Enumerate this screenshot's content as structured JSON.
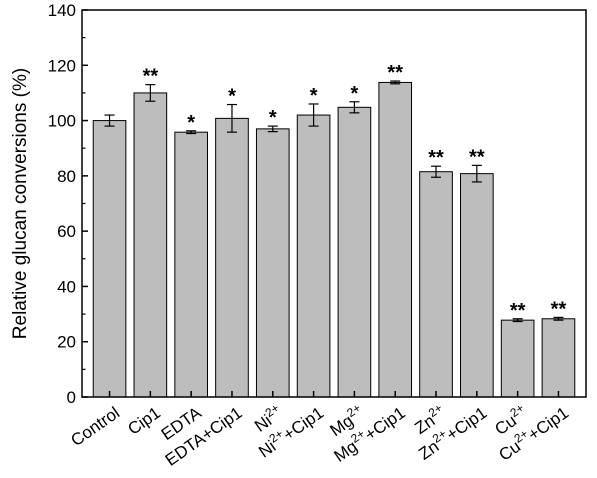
{
  "chart_data": {
    "type": "bar",
    "title": "",
    "xlabel": "",
    "ylabel": "Relative glucan conversions (%)",
    "ylim": [
      0,
      140
    ],
    "yticks": [
      "0",
      "20",
      "40",
      "60",
      "80",
      "100",
      "120",
      "140"
    ],
    "grid": false,
    "bar_color": "#bdbdbd",
    "categories": [
      {
        "base": "Control",
        "sup": "",
        "tail": ""
      },
      {
        "base": "Cip1",
        "sup": "",
        "tail": ""
      },
      {
        "base": "EDTA",
        "sup": "",
        "tail": ""
      },
      {
        "base": "EDTA+Cip1",
        "sup": "",
        "tail": ""
      },
      {
        "base": "Ni",
        "sup": "2+",
        "tail": ""
      },
      {
        "base": "Ni",
        "sup": "2+",
        "tail": "+Cip1"
      },
      {
        "base": "Mg",
        "sup": "2+",
        "tail": ""
      },
      {
        "base": "Mg",
        "sup": "2+",
        "tail": "+Cip1"
      },
      {
        "base": "Zn",
        "sup": "2+",
        "tail": ""
      },
      {
        "base": "Zn",
        "sup": "2+",
        "tail": "+Cip1"
      },
      {
        "base": "Cu",
        "sup": "2+",
        "tail": ""
      },
      {
        "base": "Cu",
        "sup": "2+",
        "tail": "+Cip1"
      }
    ],
    "values": [
      100,
      110,
      95.8,
      100.8,
      97,
      102,
      104.8,
      113.8,
      81.5,
      80.8,
      27.8,
      28.3
    ],
    "errors": [
      2.0,
      3.0,
      0.5,
      5.0,
      1.0,
      4.0,
      2.0,
      0.5,
      2.0,
      3.0,
      0.5,
      0.5
    ],
    "significance": [
      "",
      "**",
      "*",
      "*",
      "*",
      "*",
      "*",
      "**",
      "**",
      "**",
      "**",
      "**"
    ]
  }
}
